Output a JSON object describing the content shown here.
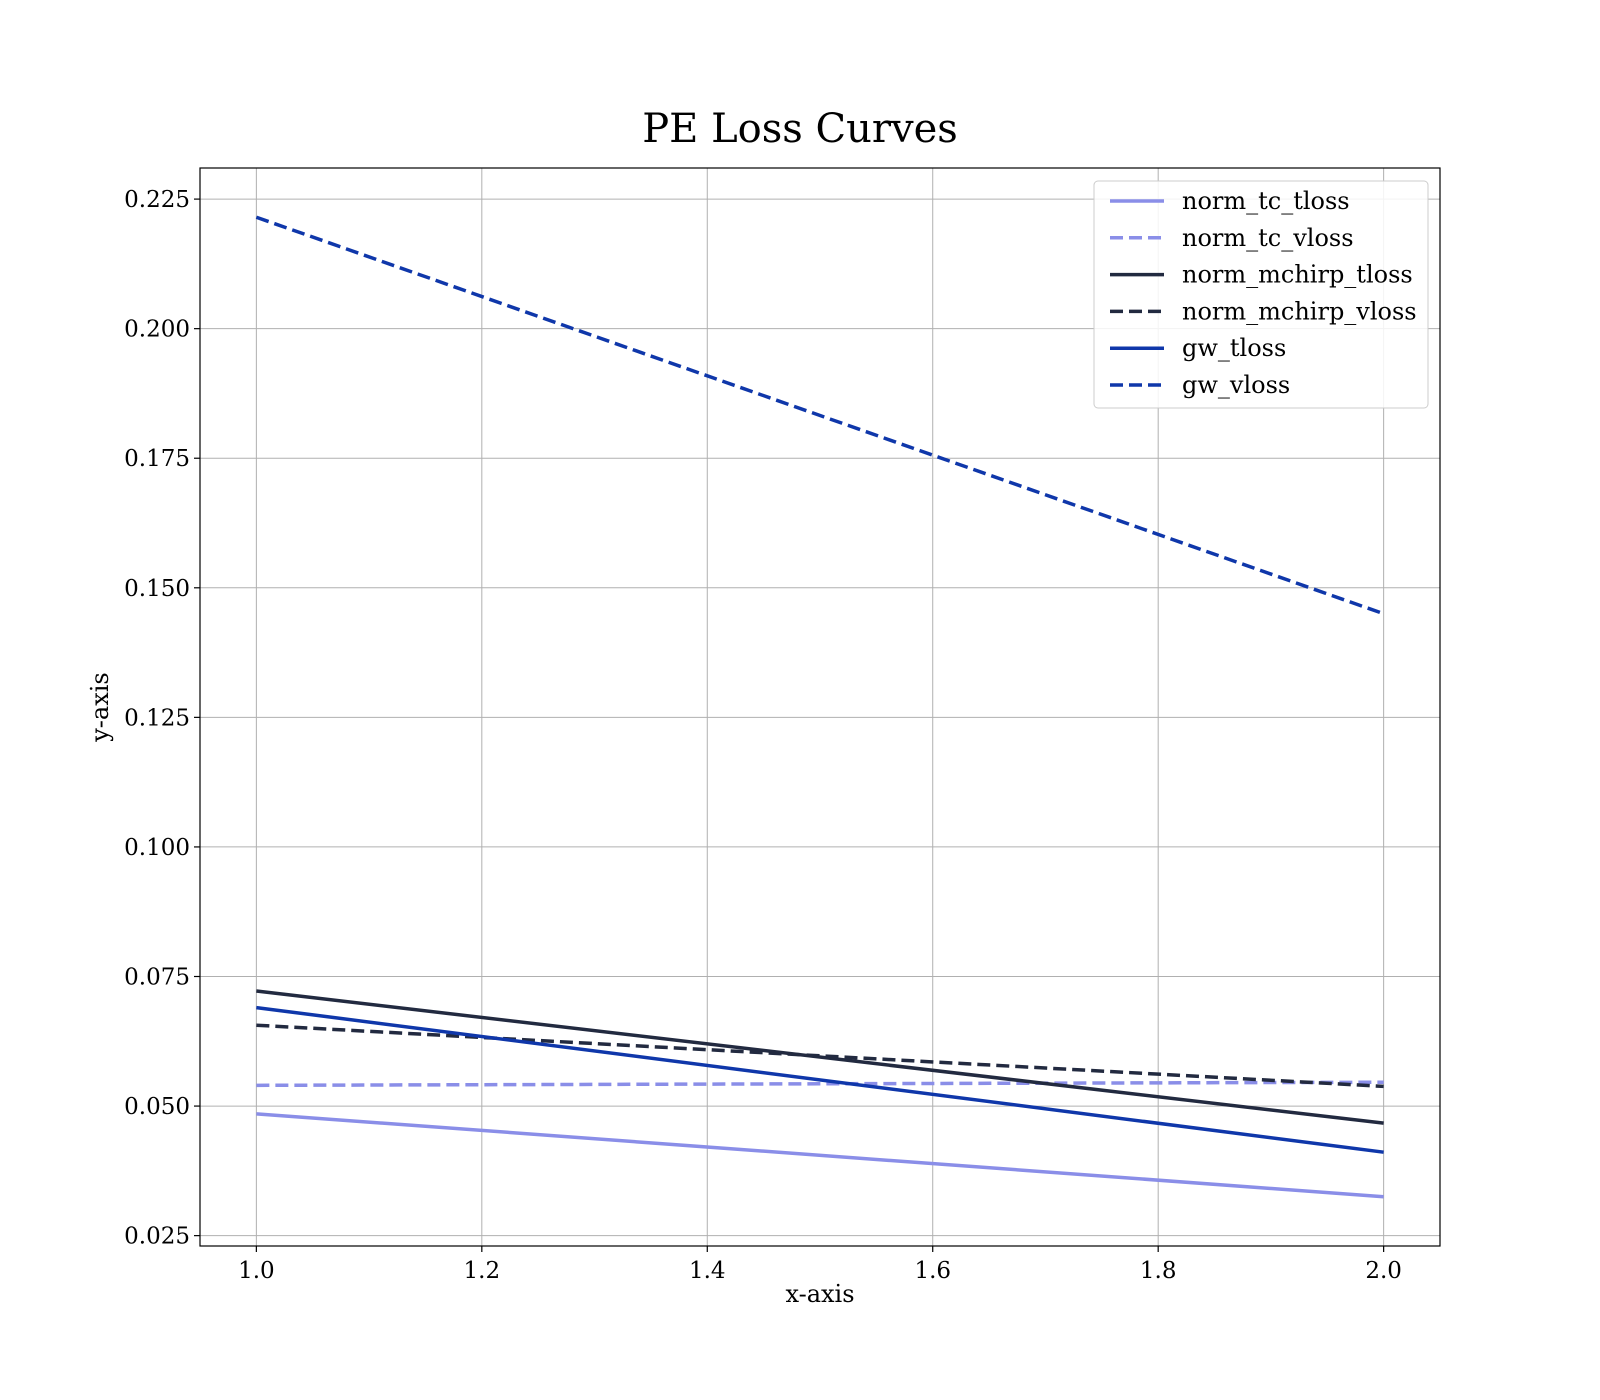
{
  "chart_data": {
    "type": "line",
    "title": "PE Loss Curves",
    "xlabel": "x-axis",
    "ylabel": "y-axis",
    "xlim": [
      0.95,
      2.05
    ],
    "ylim": [
      0.023,
      0.231
    ],
    "xticks": [
      "1.0",
      "1.2",
      "1.4",
      "1.6",
      "1.8",
      "2.0"
    ],
    "yticks": [
      "0.025",
      "0.050",
      "0.075",
      "0.100",
      "0.125",
      "0.150",
      "0.175",
      "0.200",
      "0.225"
    ],
    "grid": true,
    "legend_position": "top-right",
    "x": [
      1.0,
      2.0
    ],
    "series": [
      {
        "name": "norm_tc_tloss",
        "values": [
          0.0485,
          0.0325
        ],
        "color": "#8a8ee8",
        "style": "solid"
      },
      {
        "name": "norm_tc_vloss",
        "values": [
          0.054,
          0.0546
        ],
        "color": "#8a8ee8",
        "style": "dashed"
      },
      {
        "name": "norm_mchirp_tloss",
        "values": [
          0.0722,
          0.0467
        ],
        "color": "#222a40",
        "style": "solid"
      },
      {
        "name": "norm_mchirp_vloss",
        "values": [
          0.0656,
          0.0538
        ],
        "color": "#222a40",
        "style": "dashed"
      },
      {
        "name": "gw_tloss",
        "values": [
          0.069,
          0.0411
        ],
        "color": "#0f37aa",
        "style": "solid"
      },
      {
        "name": "gw_vloss",
        "values": [
          0.2215,
          0.145
        ],
        "color": "#0f37aa",
        "style": "dashed"
      }
    ]
  }
}
